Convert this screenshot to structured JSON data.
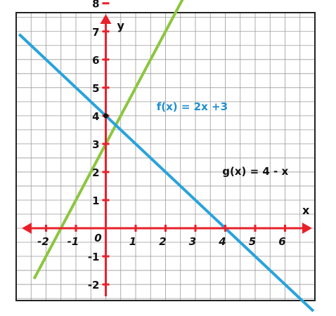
{
  "chart_data": {
    "type": "line",
    "title": "",
    "xlabel": "x",
    "ylabel": "y",
    "xlim": [
      -3,
      7
    ],
    "ylim": [
      -3,
      9
    ],
    "grid": true,
    "x_ticks": [
      -2,
      -1,
      0,
      1,
      2,
      3,
      4,
      5,
      6
    ],
    "x_tick_labels": [
      "-2",
      "-1",
      "0",
      "1",
      "2",
      "3",
      "4",
      "5",
      "6"
    ],
    "y_ticks": [
      -2,
      -1,
      1,
      2,
      3,
      4,
      5,
      6,
      7,
      8
    ],
    "y_tick_labels": [
      "-2",
      "-1",
      "1",
      "2",
      "3",
      "4",
      "5",
      "6",
      "7",
      "8"
    ],
    "series": [
      {
        "name": "f(x) = 2x +3",
        "slope": 2,
        "intercept": 3,
        "x_range": [
          -2.4,
          3.25
        ],
        "color": "#8cc63f",
        "label_color": "#1f8fd0",
        "label_at": [
          1.7,
          4.2
        ]
      },
      {
        "name": "g(x) = 4 - x",
        "slope": -1,
        "intercept": 4,
        "x_range": [
          -2.9,
          6.95
        ],
        "color": "#29a3dc",
        "label_color": "#111111",
        "label_at": [
          3.9,
          1.9
        ]
      }
    ],
    "points": [
      {
        "x": 0,
        "y": 4,
        "color": "#111111"
      }
    ],
    "colors": {
      "axis": "#e8202a",
      "grid": "#9a9a9a",
      "border": "#222222",
      "text": "#111111"
    }
  }
}
